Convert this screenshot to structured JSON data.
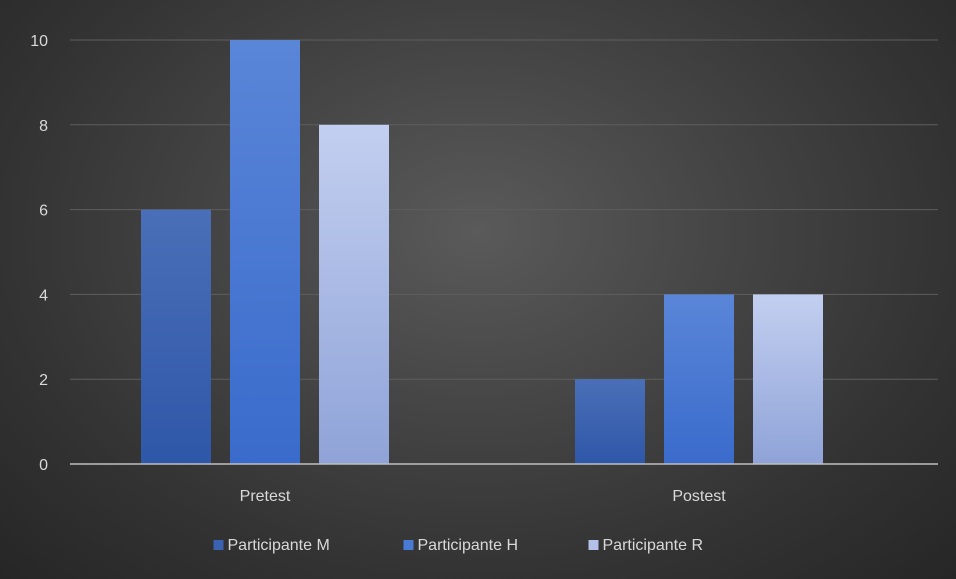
{
  "chart_data": {
    "type": "bar",
    "categories": [
      "Pretest",
      "Postest"
    ],
    "series": [
      {
        "name": "Participante M",
        "values": [
          6,
          2
        ],
        "color": "#3a62b0"
      },
      {
        "name": "Participante H",
        "values": [
          10,
          4
        ],
        "color": "#4a7bd4"
      },
      {
        "name": "Participante R",
        "values": [
          8,
          4
        ],
        "color": "#b3c1e8"
      }
    ],
    "ylim": [
      0,
      10
    ],
    "yticks": [
      0,
      2,
      4,
      6,
      8,
      10
    ],
    "grid": true,
    "legend_position": "bottom",
    "colors": {
      "background": "#404040",
      "gridline": "#5e5e5e",
      "axis_line": "#bfbfbf",
      "label_text": "#d9d9d9"
    }
  }
}
